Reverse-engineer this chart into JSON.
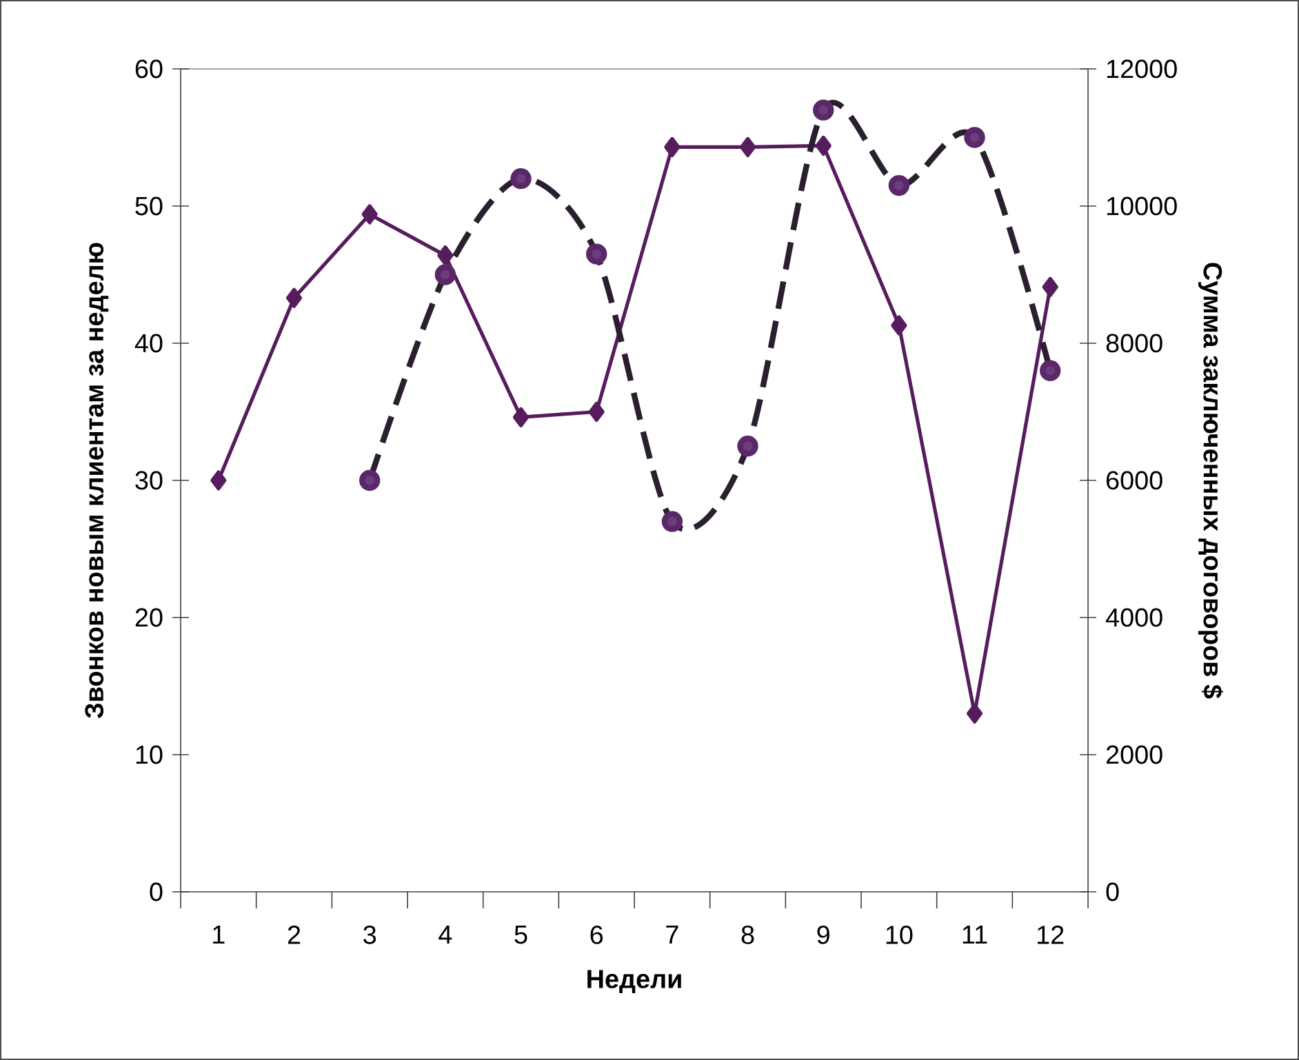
{
  "chart_data": {
    "type": "line",
    "categories": [
      "1",
      "2",
      "3",
      "4",
      "5",
      "6",
      "7",
      "8",
      "9",
      "10",
      "11",
      "12"
    ],
    "xlabel": "Недели",
    "ylabel": "Звонков новым клиентам за неделю",
    "y2label": "Сумма заключенных договоров $",
    "ylim": [
      0,
      60
    ],
    "yticks": [
      0,
      10,
      20,
      30,
      40,
      50,
      60
    ],
    "y2lim": [
      0,
      12000
    ],
    "y2ticks": [
      0,
      2000,
      4000,
      6000,
      8000,
      10000,
      12000
    ],
    "series": [
      {
        "color": "#561c5e",
        "marker": "diamond",
        "line_style": "solid",
        "values": [
          30,
          43.3,
          49.4,
          46.4,
          34.6,
          35,
          54.3,
          54.3,
          54.4,
          41.3,
          13,
          44.1
        ]
      },
      {
        "color": "#2a1f2e",
        "marker": "circle",
        "line_style": "dashed",
        "axis": "y2",
        "values": [
          null,
          null,
          6000,
          9000,
          10400,
          9300,
          5400,
          6500,
          11400,
          10300,
          11000,
          7600
        ]
      }
    ]
  }
}
